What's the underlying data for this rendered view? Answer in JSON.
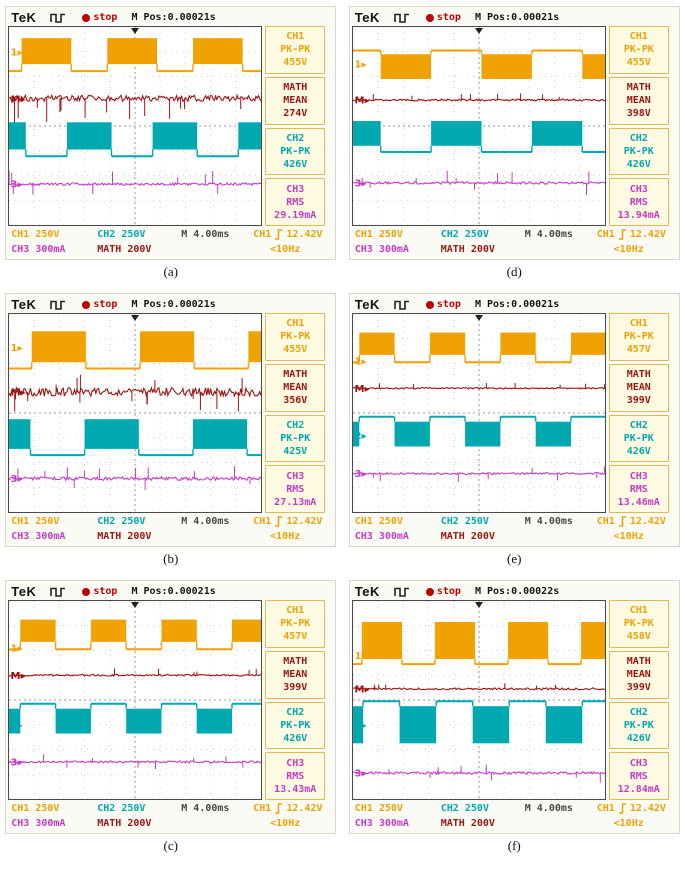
{
  "colors": {
    "ch1": "#f0a202",
    "ch2": "#00a8b0",
    "ch3": "#c43cc4",
    "math": "#9c1410",
    "time": "#4a4a44",
    "stop": "#c00000",
    "sidebar_box_bg": "#fffbe2",
    "sidebar_box_border": "#e3b84e",
    "grid_line": "#cfcfcf",
    "grid_center": "#9a9a9a",
    "plot_border": "#4a4a4a"
  },
  "icons": {
    "square_wave": "square-wave-icon",
    "stop_dot": "stop-dot-icon",
    "rising_edge": "rising-edge-icon",
    "trigger_marker": "trigger-marker-icon",
    "channel_marker_arrow": "▸"
  },
  "common": {
    "brand": "TeK",
    "stop_label": "stop"
  },
  "panels": [
    {
      "caption": "(a)",
      "header": {
        "m_pos": "M Pos:0.00021s"
      },
      "measurements": [
        {
          "ch": "CH1",
          "type": "PK-PK",
          "value": "455V"
        },
        {
          "ch": "MATH",
          "type": "MEAN",
          "value": "274V"
        },
        {
          "ch": "CH2",
          "type": "PK-PK",
          "value": "426V"
        },
        {
          "ch": "CH3",
          "type": "RMS",
          "value": "29.19mA"
        }
      ],
      "status": {
        "ch1": "CH1 250V",
        "ch2": "CH2 250V",
        "time": "M 4.00ms",
        "trig_ch": "CH1",
        "trig_val": "12.42V",
        "freq": "<10Hz",
        "ch3": "CH3 300mA",
        "math": "MATH 200V"
      }
    },
    {
      "caption": "(b)",
      "header": {
        "m_pos": "M Pos:0.00021s"
      },
      "measurements": [
        {
          "ch": "CH1",
          "type": "PK-PK",
          "value": "455V"
        },
        {
          "ch": "MATH",
          "type": "MEAN",
          "value": "356V"
        },
        {
          "ch": "CH2",
          "type": "PK-PK",
          "value": "425V"
        },
        {
          "ch": "CH3",
          "type": "RMS",
          "value": "27.13mA"
        }
      ],
      "status": {
        "ch1": "CH1 250V",
        "ch2": "CH2 250V",
        "time": "M 4.00ms",
        "trig_ch": "CH1",
        "trig_val": "12.42V",
        "freq": "<10Hz",
        "ch3": "CH3 300mA",
        "math": "MATH 200V"
      }
    },
    {
      "caption": "(c)",
      "header": {
        "m_pos": "M Pos:0.00021s"
      },
      "measurements": [
        {
          "ch": "CH1",
          "type": "PK-PK",
          "value": "457V"
        },
        {
          "ch": "MATH",
          "type": "MEAN",
          "value": "399V"
        },
        {
          "ch": "CH2",
          "type": "PK-PK",
          "value": "426V"
        },
        {
          "ch": "CH3",
          "type": "RMS",
          "value": "13.43mA"
        }
      ],
      "status": {
        "ch1": "CH1 250V",
        "ch2": "CH2 250V",
        "time": "M 4.00ms",
        "trig_ch": "CH1",
        "trig_val": "12.42V",
        "freq": "<10Hz",
        "ch3": "CH3 300mA",
        "math": "MATH 200V"
      }
    },
    {
      "caption": "(d)",
      "header": {
        "m_pos": "M Pos:0.00021s"
      },
      "measurements": [
        {
          "ch": "CH1",
          "type": "PK-PK",
          "value": "455V"
        },
        {
          "ch": "MATH",
          "type": "MEAN",
          "value": "398V"
        },
        {
          "ch": "CH2",
          "type": "PK-PK",
          "value": "426V"
        },
        {
          "ch": "CH3",
          "type": "RMS",
          "value": "13.94mA"
        }
      ],
      "status": {
        "ch1": "CH1 250V",
        "ch2": "CH2 250V",
        "time": "M 4.00ms",
        "trig_ch": "CH1",
        "trig_val": "12.42V",
        "freq": "<10Hz",
        "ch3": "CH3 300mA",
        "math": "MATH 200V"
      }
    },
    {
      "caption": "(e)",
      "header": {
        "m_pos": "M Pos:0.00021s"
      },
      "measurements": [
        {
          "ch": "CH1",
          "type": "PK-PK",
          "value": "457V"
        },
        {
          "ch": "MATH",
          "type": "MEAN",
          "value": "399V"
        },
        {
          "ch": "CH2",
          "type": "PK-PK",
          "value": "426V"
        },
        {
          "ch": "CH3",
          "type": "RMS",
          "value": "13.46mA"
        }
      ],
      "status": {
        "ch1": "CH1 250V",
        "ch2": "CH2 250V",
        "time": "M 4.00ms",
        "trig_ch": "CH1",
        "trig_val": "12.42V",
        "freq": "<10Hz",
        "ch3": "CH3 300mA",
        "math": "MATH 200V"
      }
    },
    {
      "caption": "(f)",
      "header": {
        "m_pos": "M Pos:0.00022s"
      },
      "measurements": [
        {
          "ch": "CH1",
          "type": "PK-PK",
          "value": "458V"
        },
        {
          "ch": "MATH",
          "type": "MEAN",
          "value": "399V"
        },
        {
          "ch": "CH2",
          "type": "PK-PK",
          "value": "426V"
        },
        {
          "ch": "CH3",
          "type": "RMS",
          "value": "12.84mA"
        }
      ],
      "status": {
        "ch1": "CH1 250V",
        "ch2": "CH2 250V",
        "time": "M 4.00ms",
        "trig_ch": "CH1",
        "trig_val": "12.42V",
        "freq": "<10Hz",
        "ch3": "CH3 300mA",
        "math": "MATH 200V"
      }
    }
  ],
  "chart_data": [
    {
      "panel": "(a)",
      "type": "line",
      "title": "Oscilloscope capture (a)",
      "timebase": "4.00ms/div",
      "m_pos_s": 0.00021,
      "divisions": {
        "x": 10,
        "y": 8
      },
      "measurements": {
        "ch1_pkpk_V": 455,
        "math_mean_V": 274,
        "ch2_pkpk_V": 426,
        "ch3_rms_mA": 29.19
      },
      "channels": [
        {
          "name": "CH1",
          "marker": "1",
          "marker_y": 1.0,
          "color_key": "ch1",
          "kind": "pwm",
          "scale": "250V/div",
          "period_div": 3.4,
          "duty": 0.58,
          "phase_div": 0.5,
          "band_div": [
            0.45,
            1.5
          ],
          "base_div": 1.78
        },
        {
          "name": "MATH",
          "marker": "M",
          "marker_y": 2.9,
          "color_key": "math",
          "kind": "noise",
          "scale": "200V/div",
          "y_div": 2.88,
          "noise_div": 0.12,
          "spikes": {
            "count": 14,
            "len_div": 1.0,
            "dir": "down"
          }
        },
        {
          "name": "CH2",
          "marker": "2",
          "marker_y": 4.55,
          "color_key": "ch2",
          "kind": "pwm",
          "scale": "250V/div",
          "period_div": 3.4,
          "duty": 0.52,
          "phase_div": 2.3,
          "band_div": [
            3.85,
            4.95
          ],
          "base_div": 5.22
        },
        {
          "name": "CH3",
          "marker": "3",
          "marker_y": 6.35,
          "color_key": "ch3",
          "kind": "noise",
          "scale": "300mA/div",
          "y_div": 6.35,
          "noise_div": 0.05,
          "spikes": {
            "count": 10,
            "len_div": 0.55,
            "dir": "both"
          }
        }
      ]
    },
    {
      "panel": "(b)",
      "type": "line",
      "title": "Oscilloscope capture (b)",
      "timebase": "4.00ms/div",
      "m_pos_s": 0.00021,
      "divisions": {
        "x": 10,
        "y": 8
      },
      "measurements": {
        "ch1_pkpk_V": 455,
        "math_mean_V": 356,
        "ch2_pkpk_V": 425,
        "ch3_rms_mA": 27.13
      },
      "channels": [
        {
          "name": "CH1",
          "marker": "1",
          "marker_y": 1.35,
          "color_key": "ch1",
          "kind": "pwm",
          "scale": "250V/div",
          "period_div": 4.3,
          "duty": 0.5,
          "phase_div": 0.9,
          "band_div": [
            0.7,
            1.95
          ],
          "base_div": 2.2
        },
        {
          "name": "MATH",
          "marker": "M",
          "marker_y": 3.15,
          "color_key": "math",
          "kind": "noise",
          "scale": "200V/div",
          "y_div": 3.15,
          "noise_div": 0.17,
          "spikes": {
            "count": 16,
            "len_div": 0.8,
            "dir": "both"
          }
        },
        {
          "name": "CH2",
          "marker": "2",
          "marker_y": 4.85,
          "color_key": "ch2",
          "kind": "pwm",
          "scale": "250V/div",
          "period_div": 4.3,
          "duty": 0.5,
          "phase_div": 3.0,
          "band_div": [
            4.25,
            5.45
          ],
          "base_div": 5.7
        },
        {
          "name": "CH3",
          "marker": "3",
          "marker_y": 6.65,
          "color_key": "ch3",
          "kind": "noise",
          "scale": "300mA/div",
          "y_div": 6.65,
          "noise_div": 0.07,
          "spikes": {
            "count": 12,
            "len_div": 0.6,
            "dir": "both"
          }
        }
      ]
    },
    {
      "panel": "(c)",
      "type": "line",
      "title": "Oscilloscope capture (c)",
      "timebase": "4.00ms/div",
      "m_pos_s": 0.00021,
      "divisions": {
        "x": 10,
        "y": 8
      },
      "measurements": {
        "ch1_pkpk_V": 457,
        "math_mean_V": 399,
        "ch2_pkpk_V": 426,
        "ch3_rms_mA": 13.43
      },
      "channels": [
        {
          "name": "CH1",
          "marker": "1",
          "marker_y": 1.9,
          "color_key": "ch1",
          "kind": "pwm",
          "scale": "250V/div",
          "period_div": 2.8,
          "duty": 0.5,
          "phase_div": 0.45,
          "band_div": [
            0.75,
            1.65
          ],
          "base_div": 1.95
        },
        {
          "name": "MATH",
          "marker": "M",
          "marker_y": 3.0,
          "color_key": "math",
          "kind": "noise",
          "scale": "200V/div",
          "y_div": 3.0,
          "noise_div": 0.035,
          "spikes": {
            "count": 6,
            "len_div": 0.3,
            "dir": "up"
          }
        },
        {
          "name": "CH2",
          "marker": "2",
          "marker_y": 5.0,
          "color_key": "ch2",
          "kind": "pwm",
          "scale": "250V/div",
          "period_div": 2.8,
          "duty": 0.5,
          "phase_div": 1.85,
          "band_div": [
            4.35,
            5.35
          ],
          "base_div": 4.15
        },
        {
          "name": "CH3",
          "marker": "3",
          "marker_y": 6.5,
          "color_key": "ch3",
          "kind": "noise",
          "scale": "300mA/div",
          "y_div": 6.5,
          "noise_div": 0.04,
          "spikes": {
            "count": 8,
            "len_div": 0.35,
            "dir": "both"
          }
        }
      ]
    },
    {
      "panel": "(d)",
      "type": "line",
      "title": "Oscilloscope capture (d)",
      "timebase": "4.00ms/div",
      "m_pos_s": 0.00021,
      "divisions": {
        "x": 10,
        "y": 8
      },
      "measurements": {
        "ch1_pkpk_V": 455,
        "math_mean_V": 398,
        "ch2_pkpk_V": 426,
        "ch3_rms_mA": 13.94
      },
      "channels": [
        {
          "name": "CH1",
          "marker": "1",
          "marker_y": 1.5,
          "color_key": "ch1",
          "kind": "pwm",
          "scale": "250V/div",
          "period_div": 4.0,
          "duty": 0.5,
          "phase_div": 1.1,
          "band_div": [
            1.1,
            2.1
          ],
          "base_div": 0.95
        },
        {
          "name": "MATH",
          "marker": "M",
          "marker_y": 2.95,
          "color_key": "math",
          "kind": "noise",
          "scale": "200V/div",
          "y_div": 2.95,
          "noise_div": 0.04,
          "spikes": {
            "count": 8,
            "len_div": 0.3,
            "dir": "up"
          }
        },
        {
          "name": "CH2",
          "marker": "2",
          "marker_y": 4.4,
          "color_key": "ch2",
          "kind": "pwm",
          "scale": "250V/div",
          "period_div": 4.0,
          "duty": 0.5,
          "phase_div": 3.1,
          "band_div": [
            3.8,
            4.8
          ],
          "base_div": 5.05
        },
        {
          "name": "CH3",
          "marker": "3",
          "marker_y": 6.3,
          "color_key": "ch3",
          "kind": "noise",
          "scale": "300mA/div",
          "y_div": 6.3,
          "noise_div": 0.05,
          "spikes": {
            "count": 10,
            "len_div": 0.5,
            "dir": "both"
          }
        }
      ]
    },
    {
      "panel": "(e)",
      "type": "line",
      "title": "Oscilloscope capture (e)",
      "timebase": "4.00ms/div",
      "m_pos_s": 0.00021,
      "divisions": {
        "x": 10,
        "y": 8
      },
      "measurements": {
        "ch1_pkpk_V": 457,
        "math_mean_V": 399,
        "ch2_pkpk_V": 426,
        "ch3_rms_mA": 13.46
      },
      "channels": [
        {
          "name": "CH1",
          "marker": "1",
          "marker_y": 1.9,
          "color_key": "ch1",
          "kind": "pwm",
          "scale": "250V/div",
          "period_div": 2.8,
          "duty": 0.5,
          "phase_div": 0.25,
          "band_div": [
            0.75,
            1.65
          ],
          "base_div": 1.95
        },
        {
          "name": "MATH",
          "marker": "M",
          "marker_y": 3.0,
          "color_key": "math",
          "kind": "noise",
          "scale": "200V/div",
          "y_div": 3.0,
          "noise_div": 0.03,
          "spikes": {
            "count": 7,
            "len_div": 0.3,
            "dir": "up"
          }
        },
        {
          "name": "CH2",
          "marker": "2",
          "marker_y": 4.9,
          "color_key": "ch2",
          "kind": "pwm",
          "scale": "250V/div",
          "period_div": 2.8,
          "duty": 0.5,
          "phase_div": 1.65,
          "band_div": [
            4.35,
            5.35
          ],
          "base_div": 4.15
        },
        {
          "name": "CH3",
          "marker": "3",
          "marker_y": 6.45,
          "color_key": "ch3",
          "kind": "noise",
          "scale": "300mA/div",
          "y_div": 6.45,
          "noise_div": 0.04,
          "spikes": {
            "count": 8,
            "len_div": 0.35,
            "dir": "both"
          }
        }
      ]
    },
    {
      "panel": "(f)",
      "type": "line",
      "title": "Oscilloscope capture (f)",
      "timebase": "4.00ms/div",
      "m_pos_s": 0.00022,
      "divisions": {
        "x": 10,
        "y": 8
      },
      "measurements": {
        "ch1_pkpk_V": 458,
        "math_mean_V": 399,
        "ch2_pkpk_V": 426,
        "ch3_rms_mA": 12.84
      },
      "channels": [
        {
          "name": "CH1",
          "marker": "1",
          "marker_y": 2.2,
          "color_key": "ch1",
          "kind": "pwm",
          "scale": "250V/div",
          "period_div": 2.9,
          "duty": 0.55,
          "phase_div": 0.35,
          "band_div": [
            0.85,
            2.35
          ],
          "base_div": 2.55
        },
        {
          "name": "MATH",
          "marker": "M",
          "marker_y": 3.55,
          "color_key": "math",
          "kind": "noise",
          "scale": "200V/div",
          "y_div": 3.55,
          "noise_div": 0.04,
          "spikes": {
            "count": 6,
            "len_div": 0.3,
            "dir": "up"
          }
        },
        {
          "name": "CH2",
          "marker": "2",
          "marker_y": 5.0,
          "color_key": "ch2",
          "kind": "pwm",
          "scale": "250V/div",
          "period_div": 2.9,
          "duty": 0.5,
          "phase_div": 1.85,
          "band_div": [
            4.25,
            5.75
          ],
          "base_div": 4.05
        },
        {
          "name": "CH3",
          "marker": "3",
          "marker_y": 6.95,
          "color_key": "ch3",
          "kind": "noise",
          "scale": "300mA/div",
          "y_div": 6.95,
          "noise_div": 0.05,
          "spikes": {
            "count": 9,
            "len_div": 0.4,
            "dir": "both"
          }
        }
      ]
    }
  ]
}
